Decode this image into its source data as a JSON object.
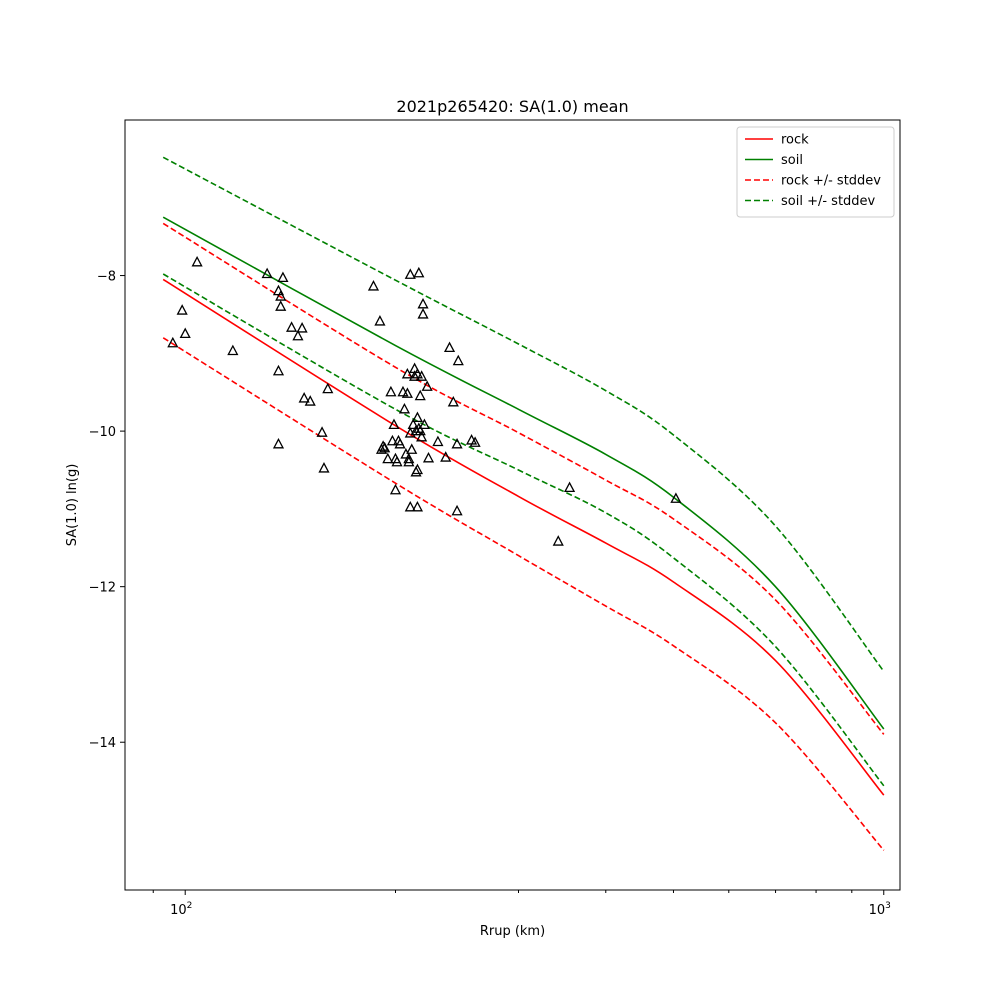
{
  "chart_data": {
    "type": "line",
    "title": "2021p265420: SA(1.0) mean",
    "xlabel": "Rrup (km)",
    "ylabel": "SA(1.0) ln(g)",
    "xscale": "log",
    "xlim": [
      82,
      1055
    ],
    "ylim": [
      -15.9,
      -6.0
    ],
    "x_ticks": [
      {
        "value": 100,
        "label": "10",
        "exp": "2"
      },
      {
        "value": 1000,
        "label": "10",
        "exp": "3"
      }
    ],
    "y_ticks": [
      {
        "value": -8,
        "label": "−8"
      },
      {
        "value": -10,
        "label": "−10"
      },
      {
        "value": -12,
        "label": "−12"
      },
      {
        "value": -14,
        "label": "−14"
      }
    ],
    "grid": false,
    "legend_position": "top-right",
    "colors": {
      "rock": "#ff0000",
      "soil": "#008000",
      "observed": "#000000"
    },
    "series": [
      {
        "name": "rock",
        "style": "solid",
        "color": "#ff0000",
        "x": [
          93,
          200,
          300,
          400,
          500,
          700,
          1000
        ],
        "y": [
          -8.05,
          -9.93,
          -10.84,
          -11.44,
          -11.94,
          -12.95,
          -14.68
        ]
      },
      {
        "name": "soil",
        "style": "solid",
        "color": "#008000",
        "x": [
          93,
          200,
          300,
          400,
          500,
          700,
          1000
        ],
        "y": [
          -7.25,
          -8.9,
          -9.72,
          -10.3,
          -10.85,
          -12.0,
          -13.83
        ]
      },
      {
        "name": "rock +/- stddev",
        "style": "dashed",
        "color": "#ff0000",
        "x": [
          93,
          200,
          300,
          400,
          500,
          700,
          1000
        ],
        "y": [
          -7.33,
          -9.18,
          -10.02,
          -10.63,
          -11.13,
          -12.17,
          -13.9
        ]
      },
      {
        "name": "rock +/- stddev",
        "style": "dashed",
        "color": "#ff0000",
        "legend": false,
        "x": [
          93,
          200,
          300,
          400,
          500,
          700,
          1000
        ],
        "y": [
          -8.8,
          -10.67,
          -11.6,
          -12.25,
          -12.76,
          -13.75,
          -15.39
        ]
      },
      {
        "name": "soil +/- stddev",
        "style": "dashed",
        "color": "#008000",
        "x": [
          93,
          200,
          300,
          400,
          500,
          700,
          1000
        ],
        "y": [
          -6.48,
          -8.06,
          -8.88,
          -9.48,
          -10.05,
          -11.22,
          -13.09
        ]
      },
      {
        "name": "soil +/- stddev",
        "style": "dashed",
        "color": "#008000",
        "legend": false,
        "x": [
          93,
          200,
          300,
          400,
          500,
          700,
          1000
        ],
        "y": [
          -7.98,
          -9.72,
          -10.5,
          -11.05,
          -11.63,
          -12.77,
          -14.56
        ]
      }
    ],
    "observations": {
      "name": "observed",
      "marker": "triangle",
      "points": [
        [
          96,
          -8.87
        ],
        [
          99,
          -8.45
        ],
        [
          100,
          -8.75
        ],
        [
          104,
          -7.83
        ],
        [
          117,
          -8.97
        ],
        [
          131,
          -7.98
        ],
        [
          136,
          -8.2
        ],
        [
          138,
          -8.03
        ],
        [
          137,
          -8.27
        ],
        [
          137,
          -8.4
        ],
        [
          136,
          -9.23
        ],
        [
          136,
          -10.17
        ],
        [
          142,
          -8.67
        ],
        [
          145,
          -8.78
        ],
        [
          147,
          -8.68
        ],
        [
          148,
          -9.58
        ],
        [
          151,
          -9.62
        ],
        [
          157,
          -10.02
        ],
        [
          158,
          -10.48
        ],
        [
          160,
          -9.46
        ],
        [
          186,
          -8.14
        ],
        [
          190,
          -8.59
        ],
        [
          192,
          -10.2
        ],
        [
          191,
          -10.24
        ],
        [
          193,
          -10.22
        ],
        [
          195,
          -10.36
        ],
        [
          197,
          -9.5
        ],
        [
          198,
          -10.13
        ],
        [
          199,
          -9.92
        ],
        [
          201,
          -10.4
        ],
        [
          202,
          -10.13
        ],
        [
          200,
          -10.76
        ],
        [
          200,
          -10.36
        ],
        [
          203,
          -10.17
        ],
        [
          205,
          -9.5
        ],
        [
          206,
          -9.72
        ],
        [
          207,
          -10.3
        ],
        [
          208,
          -9.27
        ],
        [
          208,
          -9.52
        ],
        [
          209,
          -10.36
        ],
        [
          209,
          -10.4
        ],
        [
          210,
          -10.03
        ],
        [
          211,
          -10.24
        ],
        [
          210,
          -7.99
        ],
        [
          210,
          -10.98
        ],
        [
          212,
          -9.92
        ],
        [
          213,
          -9.2
        ],
        [
          213,
          -9.3
        ],
        [
          214,
          -10.53
        ],
        [
          214,
          -10.0
        ],
        [
          215,
          -9.83
        ],
        [
          215,
          -9.27
        ],
        [
          215,
          -10.98
        ],
        [
          215,
          -10.5
        ],
        [
          216,
          -9.97
        ],
        [
          216,
          -7.97
        ],
        [
          217,
          -10.0
        ],
        [
          217,
          -9.55
        ],
        [
          218,
          -10.08
        ],
        [
          218,
          -9.3
        ],
        [
          219,
          -8.5
        ],
        [
          219,
          -8.37
        ],
        [
          220,
          -9.92
        ],
        [
          222,
          -9.43
        ],
        [
          223,
          -10.35
        ],
        [
          230,
          -10.14
        ],
        [
          236,
          -10.34
        ],
        [
          239,
          -8.93
        ],
        [
          242,
          -9.63
        ],
        [
          245,
          -10.17
        ],
        [
          246,
          -9.1
        ],
        [
          245,
          -11.03
        ],
        [
          257,
          -10.12
        ],
        [
          260,
          -10.15
        ],
        [
          342,
          -11.42
        ],
        [
          355,
          -10.73
        ],
        [
          504,
          -10.87
        ]
      ]
    }
  }
}
